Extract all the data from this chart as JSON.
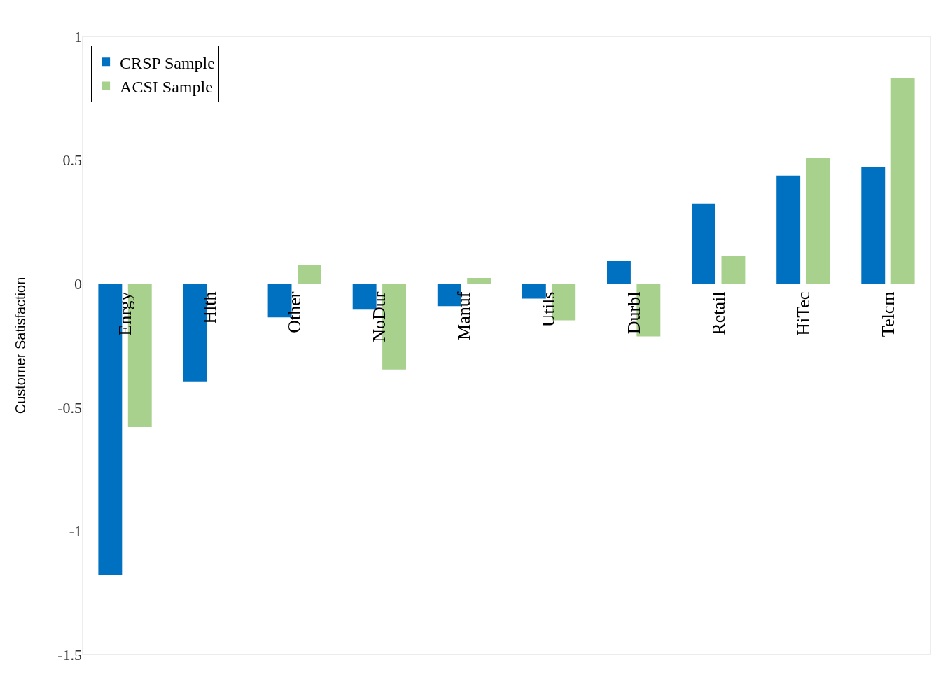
{
  "chart_data": {
    "type": "bar",
    "ylabel": "Customer Satisfaction",
    "categories": [
      "Enrgy",
      "Hlth",
      "Other",
      "NoDur",
      "Manuf",
      "Utils",
      "Durbl",
      "Retail",
      "HiTec",
      "Telcm"
    ],
    "series": [
      {
        "name": "CRSP Sample",
        "color": "#0070c0",
        "values": [
          -1.18,
          -0.395,
          -0.136,
          -0.105,
          -0.091,
          -0.06,
          0.091,
          0.324,
          0.437,
          0.472
        ]
      },
      {
        "name": "ACSI Sample",
        "color": "#a9d18e",
        "values": [
          -0.58,
          null,
          0.074,
          -0.347,
          0.023,
          -0.148,
          -0.213,
          0.111,
          0.508,
          0.832
        ]
      }
    ],
    "ylim": [
      -1.5,
      1
    ],
    "yticks": [
      -1.5,
      -1,
      -0.5,
      0,
      0.5,
      1
    ],
    "grid": "y",
    "legend": "top left"
  }
}
